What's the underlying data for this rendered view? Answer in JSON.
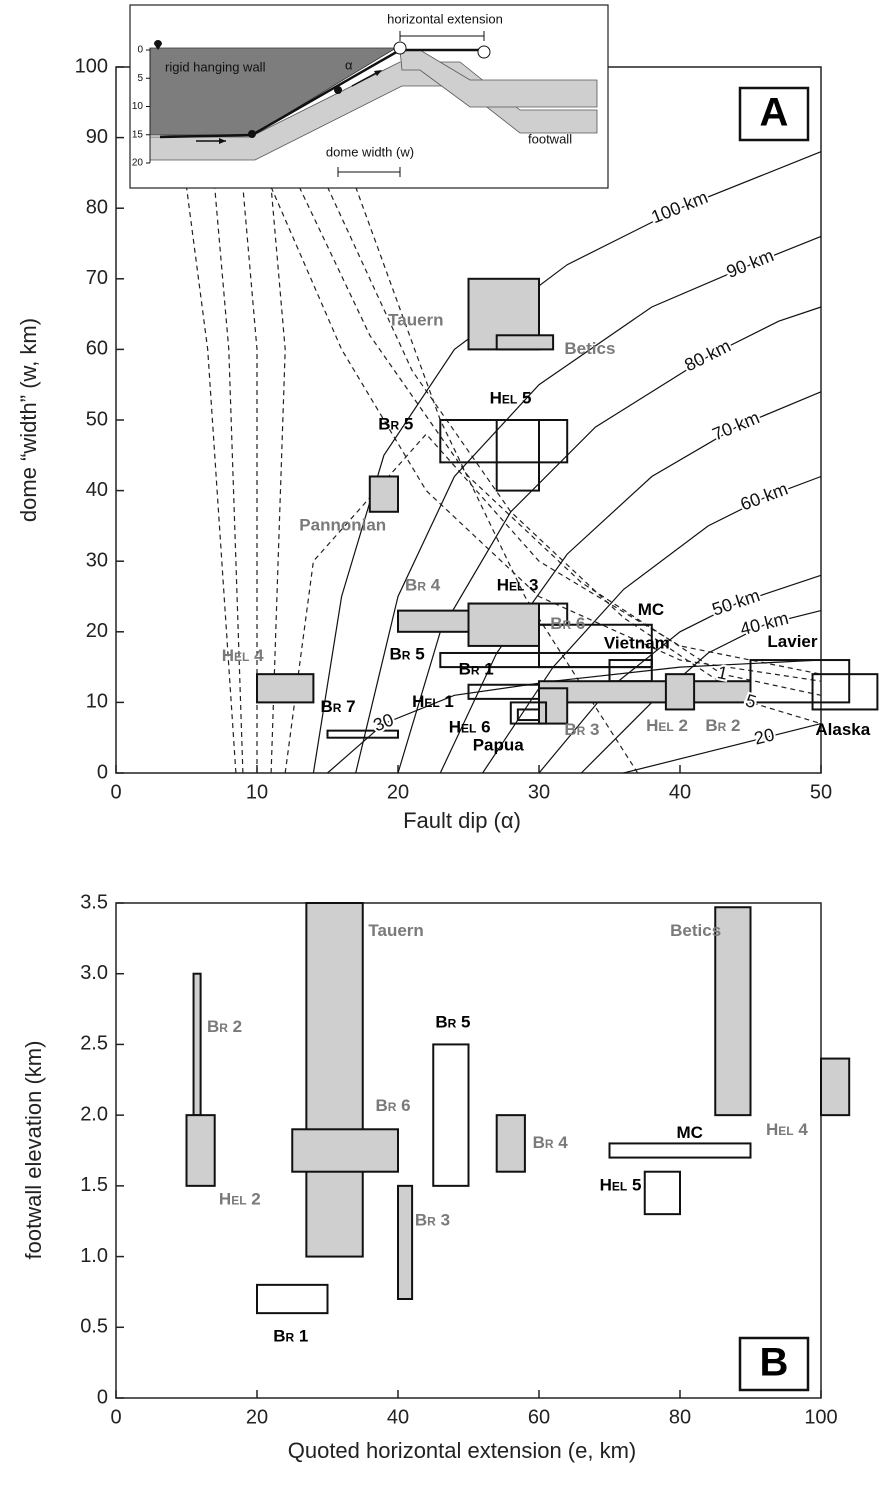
{
  "chart_data": [
    {
      "type": "range-box",
      "panel": "A",
      "xlabel": "Fault dip (α)",
      "ylabel": "dome “width” (w, km)",
      "xlim": [
        0,
        50
      ],
      "ylim": [
        0,
        100
      ],
      "xticks": [
        0,
        10,
        20,
        30,
        40,
        50
      ],
      "yticks": [
        0,
        10,
        20,
        30,
        40,
        50,
        60,
        70,
        80,
        90,
        100
      ],
      "fill_color": "#cfcfcf",
      "boxes": [
        {
          "label": "Tauern",
          "x": [
            25,
            30
          ],
          "y": [
            60,
            70
          ],
          "filled": true,
          "label_color": "#7a7a7a"
        },
        {
          "label": "Betics",
          "x": [
            27,
            31
          ],
          "y": [
            60,
            62
          ],
          "filled": true,
          "label_color": "#7a7a7a"
        },
        {
          "label": "Hel 5",
          "x": [
            23,
            32
          ],
          "y": [
            44,
            50
          ],
          "filled": false,
          "label_color": "#000000"
        },
        {
          "label": null,
          "x": [
            27,
            30
          ],
          "y": [
            40,
            50
          ],
          "filled": false,
          "label_color": "#000000"
        },
        {
          "label": "Pannonian",
          "x": [
            18,
            20
          ],
          "y": [
            37,
            42
          ],
          "filled": true,
          "label_color": "#7a7a7a"
        },
        {
          "label": "Br 4",
          "x": [
            20,
            25
          ],
          "y": [
            20,
            23
          ],
          "filled": true,
          "label_color": "#7a7a7a"
        },
        {
          "label": "Hel 3",
          "x": [
            25,
            32
          ],
          "y": [
            21,
            24
          ],
          "filled": false,
          "label_color": "#000000"
        },
        {
          "label": "Br 6",
          "x": [
            25,
            30
          ],
          "y": [
            18,
            24
          ],
          "filled": true,
          "label_color": "#7a7a7a"
        },
        {
          "label": "MC",
          "x": [
            30,
            38
          ],
          "y": [
            15,
            21
          ],
          "filled": false,
          "label_color": "#000000"
        },
        {
          "label": "Br 1",
          "x": [
            23,
            38
          ],
          "y": [
            15,
            17
          ],
          "filled": false,
          "label_color": "#000000"
        },
        {
          "label": "Vietnam",
          "x": [
            35,
            38
          ],
          "y": [
            13,
            16
          ],
          "filled": false,
          "label_color": "#000000"
        },
        {
          "label": "Lavier",
          "x": [
            45,
            52
          ],
          "y": [
            10,
            16
          ],
          "filled": false,
          "label_color": "#000000"
        },
        {
          "label": "Alaska",
          "x": [
            49.4,
            54
          ],
          "y": [
            9,
            14
          ],
          "filled": false,
          "label_color": "#000000"
        },
        {
          "label": "Hel 1",
          "x": [
            25,
            38
          ],
          "y": [
            10.5,
            12.5
          ],
          "filled": false,
          "label_color": "#000000"
        },
        {
          "label": "Br 2",
          "x": [
            30,
            45
          ],
          "y": [
            10,
            13
          ],
          "filled": true,
          "label_color": "#7a7a7a"
        },
        {
          "label": "Hel 2",
          "x": [
            39,
            41
          ],
          "y": [
            9,
            14
          ],
          "filled": true,
          "label_color": "#7a7a7a"
        },
        {
          "label": "Br 3",
          "x": [
            30,
            32
          ],
          "y": [
            7,
            12
          ],
          "filled": true,
          "label_color": "#7a7a7a"
        },
        {
          "label": "Papua",
          "x": [
            28,
            30.5
          ],
          "y": [
            7,
            10
          ],
          "filled": false,
          "label_color": "#000000"
        },
        {
          "label": "Hel 6",
          "x": [
            28.5,
            30
          ],
          "y": [
            7.5,
            9
          ],
          "filled": false,
          "label_color": "#000000"
        },
        {
          "label": "Hel 4",
          "x": [
            10,
            14
          ],
          "y": [
            10,
            14
          ],
          "filled": true,
          "label_color": "#7a7a7a"
        },
        {
          "label": "Br 7",
          "x": [
            15,
            20
          ],
          "y": [
            5,
            6
          ],
          "filled": false,
          "label_color": "#000000"
        }
      ],
      "annotations": [
        "Br 5",
        "Br 5"
      ],
      "contours": [
        {
          "label": "100 km",
          "x": [
            14,
            16,
            19,
            24,
            32,
            40,
            50
          ],
          "y": [
            0,
            25,
            45,
            60,
            72,
            80,
            88
          ]
        },
        {
          "label": "90 km",
          "x": [
            17,
            20,
            24,
            30,
            38,
            45,
            50
          ],
          "y": [
            0,
            25,
            42,
            55,
            66,
            72,
            76
          ]
        },
        {
          "label": "80 km",
          "x": [
            20,
            23,
            28,
            34,
            42,
            47,
            50
          ],
          "y": [
            0,
            20,
            37,
            49,
            59,
            64,
            66
          ]
        },
        {
          "label": "70 km",
          "x": [
            23,
            27,
            32,
            38,
            44,
            50
          ],
          "y": [
            0,
            17,
            31,
            42,
            49,
            54
          ]
        },
        {
          "label": "60 km",
          "x": [
            26,
            31,
            36,
            42,
            46,
            50
          ],
          "y": [
            0,
            15,
            26,
            35,
            39,
            42
          ]
        },
        {
          "label": "50 km",
          "x": [
            30,
            35,
            40,
            44,
            50
          ],
          "y": [
            0,
            12,
            20,
            24,
            28
          ]
        },
        {
          "label": "40 km",
          "x": [
            33,
            38,
            42,
            46,
            50
          ],
          "y": [
            0,
            10,
            17,
            21,
            23
          ]
        },
        {
          "label": "30",
          "x": [
            15,
            19,
            24,
            31,
            40,
            50
          ],
          "y": [
            0,
            7,
            11,
            13,
            15,
            16
          ]
        },
        {
          "label": "20",
          "x": [
            36,
            42,
            46,
            50
          ],
          "y": [
            0,
            3,
            5,
            7
          ]
        }
      ],
      "dashed_contours": [
        {
          "label": null,
          "x": [
            8.5,
            7.5,
            6.5,
            5
          ],
          "y": [
            0,
            30,
            60,
            83
          ]
        },
        {
          "label": null,
          "x": [
            9,
            8.5,
            8,
            7
          ],
          "y": [
            0,
            30,
            60,
            83
          ]
        },
        {
          "label": null,
          "x": [
            10,
            10,
            10,
            9
          ],
          "y": [
            0,
            30,
            60,
            83
          ]
        },
        {
          "label": null,
          "x": [
            11,
            11.5,
            12,
            11
          ],
          "y": [
            0,
            30,
            60,
            83
          ]
        },
        {
          "label": null,
          "x": [
            12,
            14,
            22,
            30,
            40,
            50
          ],
          "y": [
            0,
            30,
            48,
            30,
            18,
            14
          ]
        },
        {
          "label": "1",
          "x": [
            13,
            18,
            25,
            33,
            43,
            50
          ],
          "y": [
            83,
            62,
            42,
            27,
            14,
            11
          ]
        },
        {
          "label": "5",
          "x": [
            15,
            21,
            28,
            36,
            45,
            50
          ],
          "y": [
            83,
            57,
            37,
            22,
            10,
            7
          ]
        },
        {
          "label": null,
          "x": [
            17,
            23,
            29,
            37
          ],
          "y": [
            83,
            50,
            25,
            0
          ]
        },
        {
          "label": null,
          "x": [
            11,
            16,
            22,
            30,
            40,
            50
          ],
          "y": [
            83,
            60,
            40,
            25,
            16,
            13
          ]
        }
      ]
    },
    {
      "type": "range-box",
      "panel": "B",
      "xlabel": "Quoted horizontal extension (e, km)",
      "ylabel": "footwall elevation (km)",
      "xlim": [
        0,
        100
      ],
      "ylim": [
        0,
        3.5
      ],
      "xticks": [
        0,
        20,
        40,
        60,
        80,
        100
      ],
      "yticks": [
        0,
        0.5,
        {
          "value": 1,
          "label": "1.0"
        },
        1.5,
        {
          "value": 2,
          "label": "2.0"
        },
        2.5,
        {
          "value": 3,
          "label": "3.0"
        },
        3.5
      ],
      "fill_color": "#cfcfcf",
      "boxes": [
        {
          "label": "Br 2",
          "x": [
            11,
            12
          ],
          "y": [
            2,
            3
          ],
          "filled": true,
          "label_color": "#7a7a7a"
        },
        {
          "label": "Hel 2",
          "x": [
            10,
            14
          ],
          "y": [
            1.5,
            2
          ],
          "filled": true,
          "label_color": "#7a7a7a"
        },
        {
          "label": "Tauern",
          "x": [
            27,
            35
          ],
          "y": [
            1,
            3.5
          ],
          "filled": true,
          "label_color": "#7a7a7a"
        },
        {
          "label": "Br 6",
          "x": [
            25,
            40
          ],
          "y": [
            1.6,
            1.9
          ],
          "filled": true,
          "label_color": "#7a7a7a"
        },
        {
          "label": "Br 3",
          "x": [
            40,
            42
          ],
          "y": [
            0.7,
            1.5
          ],
          "filled": true,
          "label_color": "#7a7a7a"
        },
        {
          "label": "Br 1",
          "x": [
            20,
            30
          ],
          "y": [
            0.6,
            0.8
          ],
          "filled": false,
          "label_color": "#000000"
        },
        {
          "label": "Br 5",
          "x": [
            45,
            50
          ],
          "y": [
            1.5,
            2.5
          ],
          "filled": false,
          "label_color": "#000000"
        },
        {
          "label": "Br 4",
          "x": [
            54,
            58
          ],
          "y": [
            1.6,
            2
          ],
          "filled": true,
          "label_color": "#7a7a7a"
        },
        {
          "label": "Betics",
          "x": [
            85,
            90
          ],
          "y": [
            2,
            3.47
          ],
          "filled": true,
          "label_color": "#7a7a7a"
        },
        {
          "label": "MC",
          "x": [
            70,
            90
          ],
          "y": [
            1.7,
            1.8
          ],
          "filled": false,
          "label_color": "#000000"
        },
        {
          "label": "Hel 5",
          "x": [
            75,
            80
          ],
          "y": [
            1.3,
            1.6
          ],
          "filled": false,
          "label_color": "#000000"
        },
        {
          "label": "Hel 4",
          "x": [
            100,
            104
          ],
          "y": [
            2,
            2.4
          ],
          "filled": true,
          "label_color": "#7a7a7a"
        }
      ]
    }
  ],
  "inset": {
    "hanging_wall": "rigid hanging wall",
    "footwall": "footwall",
    "extension": "horizontal extension",
    "dome_width": "dome width (w)",
    "dip": "α",
    "depth_ticks": [
      0,
      5,
      10,
      15,
      20
    ]
  }
}
